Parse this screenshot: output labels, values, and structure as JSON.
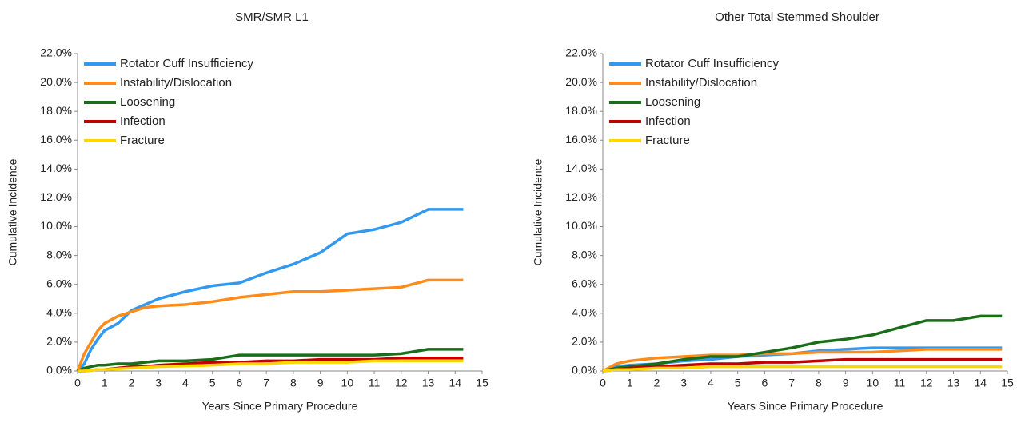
{
  "chart_data": [
    {
      "type": "line",
      "title": "SMR/SMR L1",
      "x_label": "Years Since Primary Procedure",
      "y_label": "Cumulative Incidence",
      "x": [
        0,
        0.25,
        0.5,
        0.75,
        1,
        1.5,
        2,
        2.5,
        3,
        4,
        5,
        6,
        7,
        8,
        9,
        10,
        11,
        12,
        13,
        14,
        14.3
      ],
      "xlim": [
        0,
        15
      ],
      "xticks": [
        0,
        1,
        2,
        3,
        4,
        5,
        6,
        7,
        8,
        9,
        10,
        11,
        12,
        13,
        14,
        15
      ],
      "ylim": [
        0,
        22
      ],
      "yticks": [
        {
          "value": 0,
          "label": "0.0%"
        },
        {
          "value": 2,
          "label": "2.0%"
        },
        {
          "value": 4,
          "label": "4.0%"
        },
        {
          "value": 6,
          "label": "6.0%"
        },
        {
          "value": 8,
          "label": "8.0%"
        },
        {
          "value": 10,
          "label": "10.0%"
        },
        {
          "value": 12,
          "label": "12.0%"
        },
        {
          "value": 14,
          "label": "14.0%"
        },
        {
          "value": 16,
          "label": "16.0%"
        },
        {
          "value": 18,
          "label": "18.0%"
        },
        {
          "value": 20,
          "label": "20.0%"
        },
        {
          "value": 22,
          "label": "22.0%"
        }
      ],
      "legend": "upper left",
      "series": [
        {
          "name": "Rotator Cuff Insufficiency",
          "color": "#3399ee",
          "values": [
            0,
            0.5,
            1.5,
            2.2,
            2.8,
            3.3,
            4.2,
            4.6,
            5.0,
            5.5,
            5.9,
            6.1,
            6.8,
            7.4,
            8.2,
            9.5,
            9.8,
            10.3,
            11.2,
            11.2,
            11.2
          ]
        },
        {
          "name": "Instability/Dislocation",
          "color": "#ff8c1a",
          "values": [
            0,
            1.2,
            2.0,
            2.8,
            3.3,
            3.8,
            4.1,
            4.4,
            4.5,
            4.6,
            4.8,
            5.1,
            5.3,
            5.5,
            5.5,
            5.6,
            5.7,
            5.8,
            6.3,
            6.3,
            6.3
          ]
        },
        {
          "name": "Loosening",
          "color": "#1a6e1a",
          "values": [
            0,
            0.2,
            0.3,
            0.4,
            0.4,
            0.5,
            0.5,
            0.6,
            0.7,
            0.7,
            0.8,
            1.1,
            1.1,
            1.1,
            1.1,
            1.1,
            1.1,
            1.2,
            1.5,
            1.5,
            1.5
          ]
        },
        {
          "name": "Infection",
          "color": "#c00000",
          "values": [
            0,
            0,
            0.05,
            0.1,
            0.1,
            0.2,
            0.3,
            0.3,
            0.4,
            0.5,
            0.6,
            0.6,
            0.7,
            0.7,
            0.8,
            0.8,
            0.8,
            0.9,
            0.9,
            0.9,
            0.9
          ]
        },
        {
          "name": "Fracture",
          "color": "#ffd700",
          "values": [
            0,
            0,
            0.05,
            0.1,
            0.1,
            0.15,
            0.2,
            0.25,
            0.3,
            0.35,
            0.4,
            0.5,
            0.5,
            0.6,
            0.6,
            0.6,
            0.7,
            0.7,
            0.7,
            0.7,
            0.7
          ]
        }
      ]
    },
    {
      "type": "line",
      "title": "Other Total Stemmed Shoulder",
      "x_label": "Years Since Primary Procedure",
      "y_label": "Cumulative Incidence",
      "x": [
        0,
        0.5,
        1,
        2,
        3,
        4,
        5,
        6,
        7,
        8,
        9,
        10,
        11,
        12,
        13,
        14,
        14.8
      ],
      "xlim": [
        0,
        15
      ],
      "xticks": [
        0,
        1,
        2,
        3,
        4,
        5,
        6,
        7,
        8,
        9,
        10,
        11,
        12,
        13,
        14,
        15
      ],
      "ylim": [
        0,
        22
      ],
      "yticks": [
        {
          "value": 0,
          "label": "0.0%"
        },
        {
          "value": 2,
          "label": "2.0%"
        },
        {
          "value": 4,
          "label": "4.0%"
        },
        {
          "value": 6,
          "label": "6.0%"
        },
        {
          "value": 8,
          "label": "8.0%"
        },
        {
          "value": 10,
          "label": "10.0%"
        },
        {
          "value": 12,
          "label": "12.0%"
        },
        {
          "value": 14,
          "label": "14.0%"
        },
        {
          "value": 16,
          "label": "16.0%"
        },
        {
          "value": 18,
          "label": "18.0%"
        },
        {
          "value": 20,
          "label": "20.0%"
        },
        {
          "value": 22,
          "label": "22.0%"
        }
      ],
      "legend": "upper left",
      "series": [
        {
          "name": "Rotator Cuff Insufficiency",
          "color": "#3399ee",
          "values": [
            0,
            0.3,
            0.4,
            0.5,
            0.7,
            0.8,
            1.0,
            1.1,
            1.2,
            1.4,
            1.5,
            1.6,
            1.6,
            1.6,
            1.6,
            1.6,
            1.6
          ]
        },
        {
          "name": "Instability/Dislocation",
          "color": "#ff8c1a",
          "values": [
            0,
            0.5,
            0.7,
            0.9,
            1.0,
            1.1,
            1.1,
            1.2,
            1.2,
            1.3,
            1.3,
            1.3,
            1.4,
            1.5,
            1.5,
            1.5,
            1.5
          ]
        },
        {
          "name": "Loosening",
          "color": "#1a6e1a",
          "values": [
            0,
            0.2,
            0.3,
            0.5,
            0.8,
            1.0,
            1.0,
            1.3,
            1.6,
            2.0,
            2.2,
            2.5,
            3.0,
            3.5,
            3.5,
            3.8,
            3.8
          ]
        },
        {
          "name": "Infection",
          "color": "#c00000",
          "values": [
            0,
            0.1,
            0.2,
            0.3,
            0.4,
            0.5,
            0.5,
            0.6,
            0.6,
            0.7,
            0.8,
            0.8,
            0.8,
            0.8,
            0.8,
            0.8,
            0.8
          ]
        },
        {
          "name": "Fracture",
          "color": "#ffd700",
          "values": [
            0,
            0.1,
            0.1,
            0.2,
            0.2,
            0.3,
            0.3,
            0.3,
            0.3,
            0.3,
            0.3,
            0.3,
            0.3,
            0.3,
            0.3,
            0.3,
            0.3
          ]
        }
      ]
    }
  ]
}
